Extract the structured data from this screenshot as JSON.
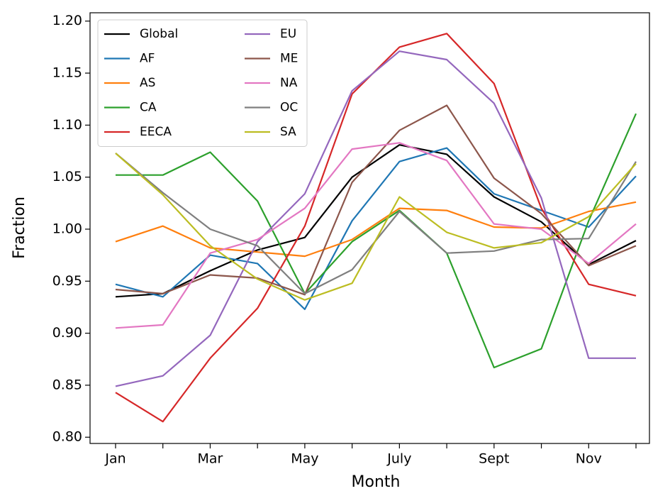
{
  "chart_data": {
    "type": "line",
    "x_label": "Month",
    "y_label": "Fraction",
    "categories": [
      "Jan",
      null,
      "Mar",
      null,
      "May",
      null,
      "July",
      null,
      "Sept",
      null,
      "Nov",
      null
    ],
    "ylim": [
      0.794,
      1.208
    ],
    "yticks": [
      {
        "value": 0.8,
        "label": "0.80"
      },
      0.85,
      {
        "value": 0.9,
        "label": "0.90"
      },
      0.95,
      {
        "value": 1.0,
        "label": "1.00"
      },
      1.05,
      {
        "value": 1.1,
        "label": "1.10"
      },
      1.15,
      {
        "value": 1.2,
        "label": "1.20"
      }
    ],
    "grid": false,
    "legend": "upper left",
    "series": [
      {
        "name": "Global",
        "color": "#000000",
        "values": [
          0.935,
          0.938,
          0.96,
          0.98,
          0.992,
          1.05,
          1.081,
          1.072,
          1.031,
          1.007,
          0.966,
          0.989
        ]
      },
      {
        "name": "AF",
        "color": "#1f77b4",
        "values": [
          0.947,
          0.935,
          0.975,
          0.967,
          0.923,
          1.008,
          1.065,
          1.078,
          1.034,
          1.018,
          1.002,
          1.051
        ]
      },
      {
        "name": "AS",
        "color": "#ff7f0e",
        "values": [
          0.988,
          1.003,
          0.982,
          0.978,
          0.974,
          0.99,
          1.02,
          1.018,
          1.002,
          1.001,
          1.017,
          1.026
        ]
      },
      {
        "name": "CA",
        "color": "#2ca02c",
        "values": [
          1.052,
          1.052,
          1.074,
          1.027,
          0.938,
          0.988,
          1.018,
          0.977,
          0.867,
          0.885,
          1.008,
          1.111
        ]
      },
      {
        "name": "EECA",
        "color": "#d62728",
        "values": [
          0.843,
          0.815,
          0.876,
          0.924,
          1.003,
          1.13,
          1.175,
          1.188,
          1.14,
          1.02,
          0.947,
          0.936
        ]
      },
      {
        "name": "EU",
        "color": "#9467bd",
        "values": [
          0.849,
          0.859,
          0.898,
          0.988,
          1.034,
          1.133,
          1.171,
          1.163,
          1.121,
          1.03,
          0.876,
          0.876
        ]
      },
      {
        "name": "ME",
        "color": "#8c564b",
        "values": [
          0.942,
          0.938,
          0.956,
          0.953,
          0.937,
          1.045,
          1.095,
          1.119,
          1.049,
          1.015,
          0.965,
          0.984
        ]
      },
      {
        "name": "NA",
        "color": "#e377c2",
        "values": [
          0.905,
          0.908,
          0.977,
          0.99,
          1.02,
          1.077,
          1.083,
          1.066,
          1.005,
          1.0,
          0.967,
          1.005
        ]
      },
      {
        "name": "OC",
        "color": "#7f7f7f",
        "values": [
          1.073,
          1.035,
          1.0,
          0.984,
          0.938,
          0.961,
          1.017,
          0.977,
          0.979,
          0.99,
          0.991,
          1.065
        ]
      },
      {
        "name": "SA",
        "color": "#bcbd22",
        "values": [
          1.073,
          1.033,
          0.984,
          0.952,
          0.932,
          0.948,
          1.031,
          0.997,
          0.982,
          0.987,
          1.012,
          1.063
        ]
      }
    ]
  }
}
